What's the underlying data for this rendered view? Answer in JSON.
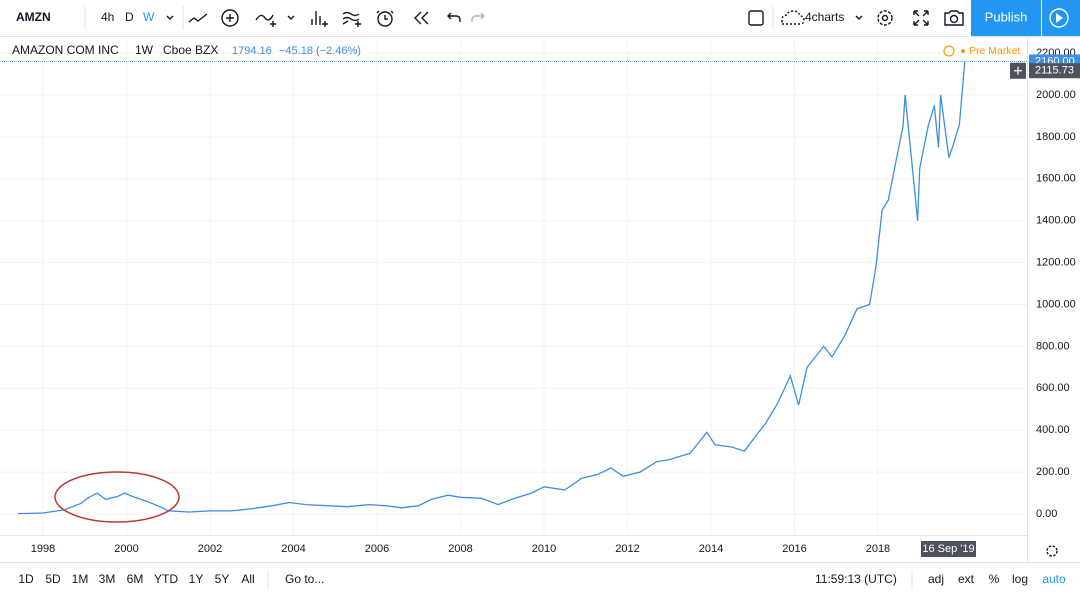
{
  "toolbar": {
    "symbol": "AMZN",
    "intervals": [
      "4h",
      "D",
      "W"
    ],
    "layout": "4charts",
    "publish": "Publish"
  },
  "legend": {
    "name": "AMAZON COM INC",
    "interval": "1W",
    "exchange": "Cboe BZX",
    "price": 1794.16,
    "change": "−45.18 (−2.46%)",
    "session": "Pre Market"
  },
  "chart_data": {
    "type": "line",
    "x": [
      1997.4,
      1998,
      1998.5,
      1998.9,
      1999.1,
      1999.3,
      1999.5,
      1999.8,
      1999.95,
      2000.2,
      2000.5,
      2000.8,
      2001,
      2001.5,
      2002,
      2002.5,
      2003,
      2003.5,
      2003.9,
      2004.3,
      2004.8,
      2005.3,
      2005.8,
      2006.2,
      2006.6,
      2007,
      2007.3,
      2007.7,
      2008,
      2008.5,
      2008.9,
      2009.3,
      2009.7,
      2010,
      2010.5,
      2010.9,
      2011.3,
      2011.6,
      2011.9,
      2012.3,
      2012.7,
      2013,
      2013.5,
      2013.9,
      2014.1,
      2014.5,
      2014.8,
      2015.1,
      2015.3,
      2015.6,
      2015.9,
      2016.1,
      2016.3,
      2016.7,
      2016.9,
      2017.2,
      2017.5,
      2017.8,
      2017.95,
      2018.1,
      2018.25,
      2018.45,
      2018.6,
      2018.65,
      2018.8,
      2018.95,
      2019.0,
      2019.2,
      2019.35,
      2019.45,
      2019.5,
      2019.7,
      2019.8,
      2019.95,
      2020.08
    ],
    "series": [
      {
        "name": "AMZN",
        "color": "#3d8ee4",
        "values": [
          2,
          5,
          20,
          50,
          80,
          100,
          70,
          85,
          100,
          80,
          60,
          35,
          15,
          10,
          15,
          15,
          25,
          40,
          55,
          45,
          40,
          35,
          45,
          40,
          30,
          40,
          70,
          90,
          80,
          75,
          45,
          75,
          100,
          130,
          115,
          170,
          190,
          220,
          180,
          200,
          250,
          260,
          290,
          390,
          330,
          320,
          300,
          380,
          430,
          530,
          660,
          520,
          700,
          800,
          750,
          850,
          980,
          1000,
          1180,
          1450,
          1500,
          1700,
          1850,
          2000,
          1700,
          1400,
          1650,
          1850,
          1950,
          1750,
          2000,
          1700,
          1760,
          1860,
          2160
        ]
      }
    ],
    "xlim": [
      1996.97,
      2021.57
    ],
    "ylim": [
      -100,
      2272
    ],
    "xticks": [
      1998,
      2000,
      2002,
      2004,
      2006,
      2008,
      2010,
      2012,
      2014,
      2016,
      2018
    ],
    "yticks": [
      {
        "value": 0,
        "label": "0.00"
      },
      {
        "value": 200,
        "label": "200.00"
      },
      {
        "value": 400,
        "label": "400.00"
      },
      {
        "value": 600,
        "label": "600.00"
      },
      {
        "value": 800,
        "label": "800.00"
      },
      {
        "value": 1000,
        "label": "1000.00"
      },
      {
        "value": 1200,
        "label": "1200.00"
      },
      {
        "value": 1400,
        "label": "1400.00"
      },
      {
        "value": 1600,
        "label": "1600.00"
      },
      {
        "value": 1800,
        "label": "1800.00"
      },
      {
        "value": 2000,
        "label": "2000.00"
      },
      {
        "value": 2200,
        "label": "2200.00"
      }
    ],
    "grid": true,
    "last_price": {
      "value": 2160,
      "label": "2160.00"
    },
    "crosshair_price": {
      "value": 2115.73,
      "label": "2115.73"
    },
    "crosshair_date": "16 Sep '19"
  },
  "bottom_bar": {
    "ranges": [
      "1D",
      "5D",
      "1M",
      "3M",
      "6M",
      "YTD",
      "1Y",
      "5Y",
      "All"
    ],
    "goto": "Go to...",
    "clock": "11:59:13 (UTC)",
    "options": [
      "adj",
      "ext",
      "%",
      "log",
      "auto"
    ]
  }
}
